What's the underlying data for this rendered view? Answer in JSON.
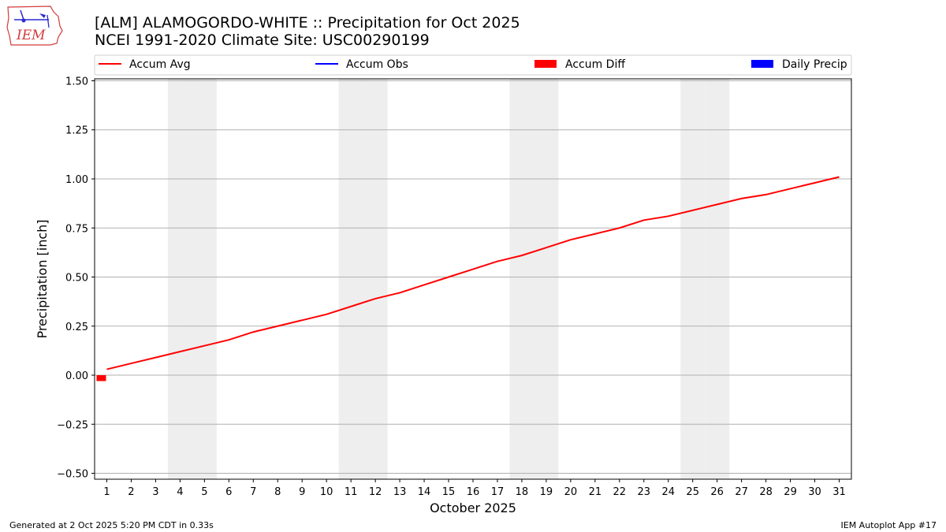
{
  "header": {
    "title_line1": "[ALM] ALAMOGORDO-WHITE :: Precipitation for Oct 2025",
    "title_line2": "NCEI 1991-2020 Climate Site: USC00290199",
    "logo_text": "IEM"
  },
  "footer": {
    "left": "Generated at 2 Oct 2025 5:20 PM CDT in 0.33s",
    "right": "IEM Autoplot App #17"
  },
  "colors": {
    "accum_avg": "#ff0000",
    "accum_obs": "#0000ff",
    "accum_diff": "#ff0000",
    "daily_precip": "#0000ff",
    "weekend_shade": "#eeeeee",
    "grid": "#b0b0b0"
  },
  "chart_data": {
    "type": "line",
    "xlabel": "October 2025",
    "ylabel": "Precipitation [inch]",
    "ylim": [
      -0.53,
      1.51
    ],
    "yticks": [
      -0.5,
      -0.25,
      0.0,
      0.25,
      0.5,
      0.75,
      1.0,
      1.25,
      1.5
    ],
    "ytick_labels": [
      "−0.50",
      "−0.25",
      "0.00",
      "0.25",
      "0.50",
      "0.75",
      "1.00",
      "1.25",
      "1.50"
    ],
    "xlim": [
      0.5,
      31.5
    ],
    "x": [
      1,
      2,
      3,
      4,
      5,
      6,
      7,
      8,
      9,
      10,
      11,
      12,
      13,
      14,
      15,
      16,
      17,
      18,
      19,
      20,
      21,
      22,
      23,
      24,
      25,
      26,
      27,
      28,
      29,
      30,
      31
    ],
    "xtick_labels": [
      "1",
      "2",
      "3",
      "4",
      "5",
      "6",
      "7",
      "8",
      "9",
      "10",
      "11",
      "12",
      "13",
      "14",
      "15",
      "16",
      "17",
      "18",
      "19",
      "20",
      "21",
      "22",
      "23",
      "24",
      "25",
      "26",
      "27",
      "28",
      "29",
      "30",
      "31"
    ],
    "weekend_days": [
      4,
      5,
      11,
      12,
      18,
      19,
      25,
      26
    ],
    "grid": "horizontal",
    "legend": {
      "placement": "top",
      "entries": [
        {
          "label": "Accum Avg",
          "kind": "line",
          "color": "#ff0000"
        },
        {
          "label": "Accum Obs",
          "kind": "line",
          "color": "#0000ff"
        },
        {
          "label": "Accum Diff",
          "kind": "bar",
          "color": "#ff0000"
        },
        {
          "label": "Daily Precip",
          "kind": "bar",
          "color": "#0000ff"
        }
      ]
    },
    "series": [
      {
        "name": "Accum Avg",
        "kind": "line",
        "values": [
          0.03,
          0.06,
          0.09,
          0.12,
          0.15,
          0.18,
          0.22,
          0.25,
          0.28,
          0.31,
          0.35,
          0.39,
          0.42,
          0.46,
          0.5,
          0.54,
          0.58,
          0.61,
          0.65,
          0.69,
          0.72,
          0.75,
          0.79,
          0.81,
          0.84,
          0.87,
          0.9,
          0.92,
          0.95,
          0.98,
          1.01
        ]
      },
      {
        "name": "Accum Diff",
        "kind": "bar",
        "x": [
          1
        ],
        "values": [
          -0.03
        ]
      }
    ]
  }
}
